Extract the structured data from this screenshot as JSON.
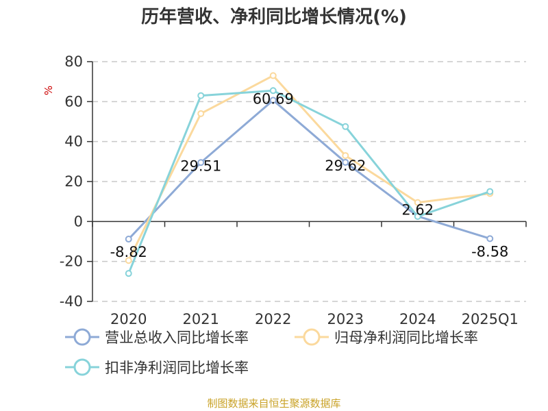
{
  "colors": {
    "series_1": "#8eaad6",
    "series_2": "#fbd99d",
    "series_3": "#87d3da",
    "grid": "#c8c8c8",
    "axis": "#333333",
    "source": "#c9a227",
    "unit": "#cc0000"
  },
  "source_note": "制图数据来自恒生聚源数据库",
  "chart_data": {
    "type": "line",
    "title": "历年营收、净利同比增长情况(%)",
    "ylabel": "%",
    "xlabel": "",
    "categories": [
      "2020",
      "2021",
      "2022",
      "2023",
      "2024",
      "2025Q1"
    ],
    "ylim": [
      -40,
      80
    ],
    "yticks": [
      -40,
      -20,
      0,
      20,
      40,
      60,
      80
    ],
    "grid": true,
    "legend_position": "bottom",
    "series": [
      {
        "name": "营业总收入同比增长率",
        "values": [
          -8.82,
          29.51,
          60.69,
          29.62,
          2.62,
          -8.58
        ],
        "show_labels": true
      },
      {
        "name": "归母净利润同比增长率",
        "values": [
          -19.5,
          54,
          73,
          33,
          9.5,
          14
        ],
        "show_labels": false
      },
      {
        "name": "扣非净利润同比增长率",
        "values": [
          -26,
          63,
          65.5,
          47.5,
          2.5,
          15
        ],
        "show_labels": false
      }
    ]
  }
}
